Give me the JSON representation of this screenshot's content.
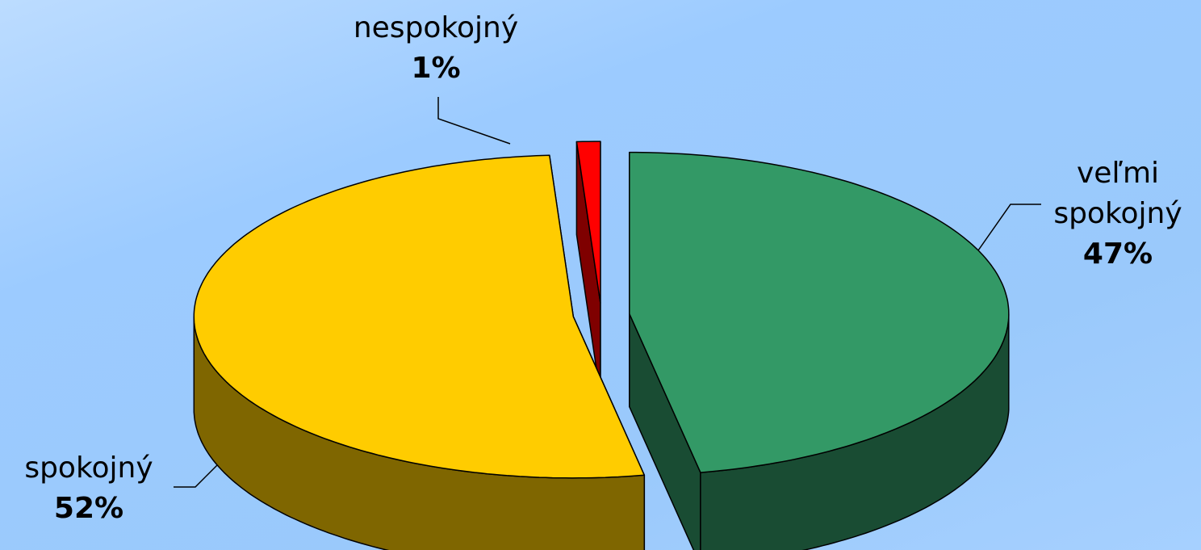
{
  "chart_data": {
    "type": "pie3d",
    "categories": [
      "veľmi spokojný",
      "spokojný",
      "nespokojný"
    ],
    "values": [
      47,
      52,
      1
    ],
    "value_labels": [
      "47%",
      "52%",
      "1%"
    ],
    "colors": [
      "#339966",
      "#ffcc00",
      "#ff0000"
    ]
  }
}
